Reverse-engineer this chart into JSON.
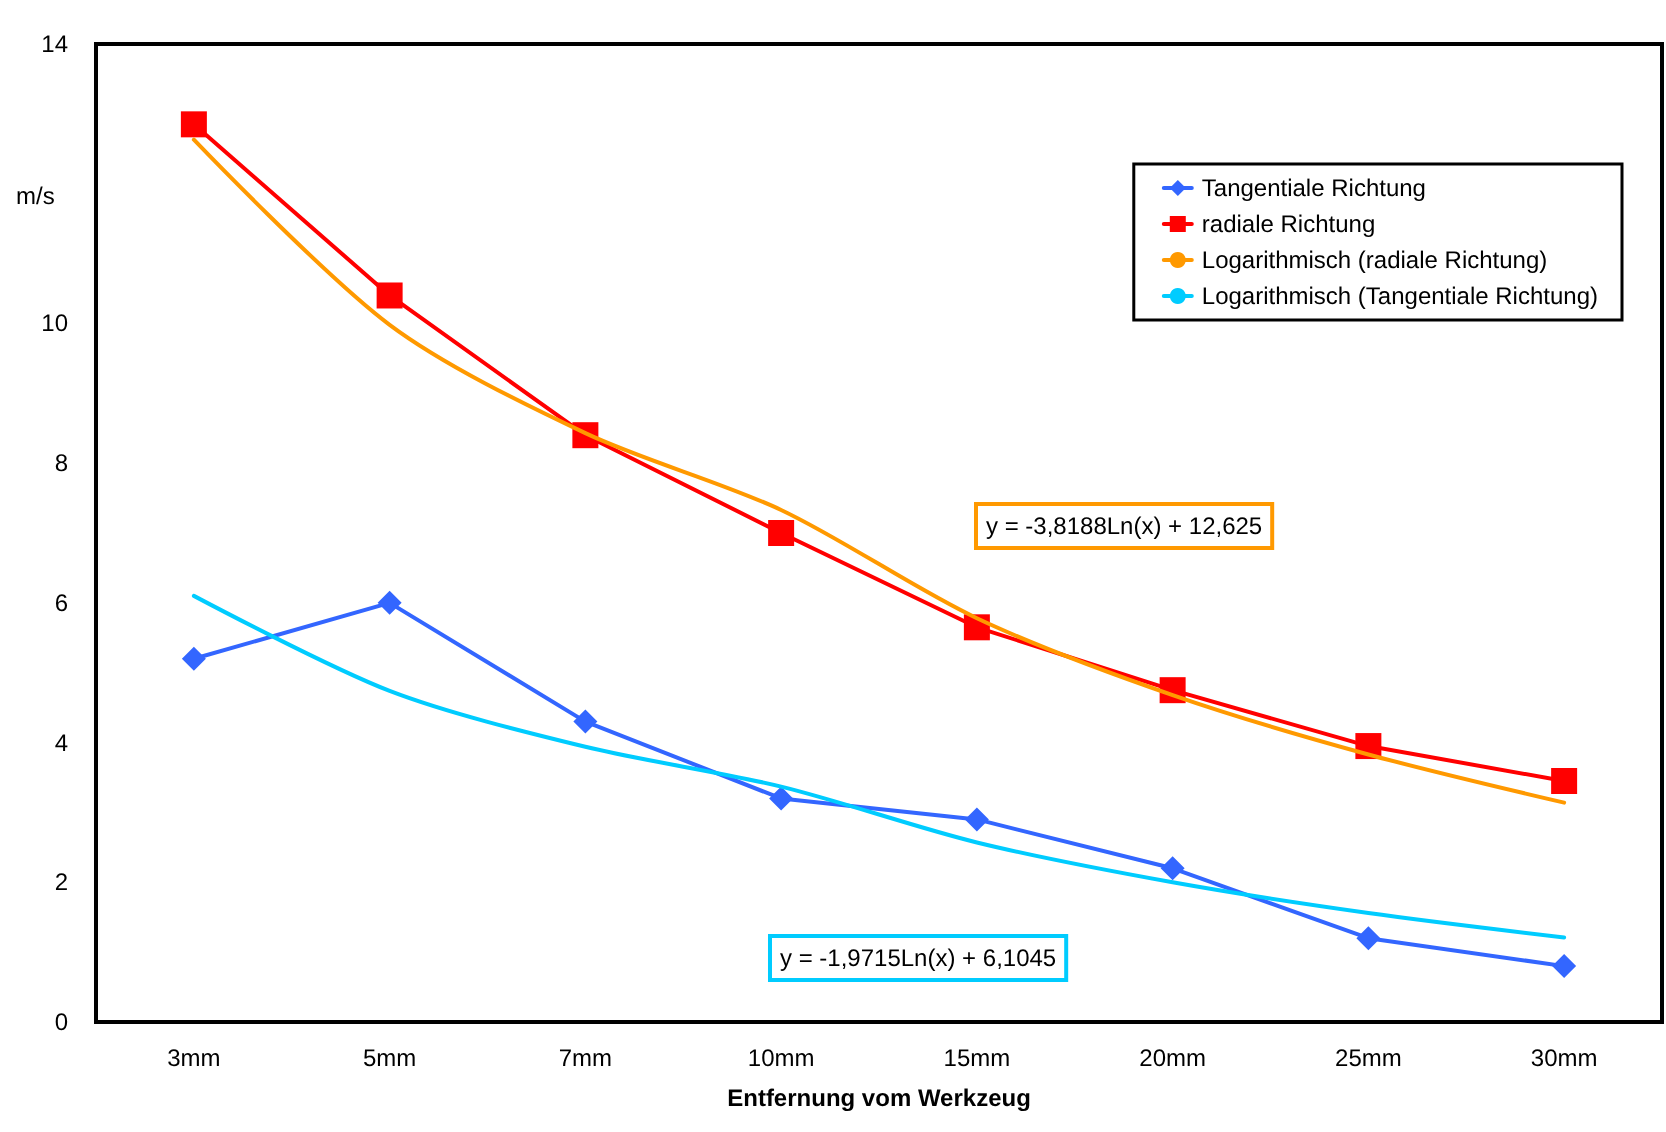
{
  "chart_data": {
    "type": "line",
    "xlabel": "Entfernung vom Werkzeug",
    "ylabel": "m/s",
    "categories": [
      "3mm",
      "5mm",
      "7mm",
      "10mm",
      "15mm",
      "20mm",
      "25mm",
      "30mm"
    ],
    "ylim": [
      0,
      14
    ],
    "yticks": [
      0,
      2,
      4,
      6,
      8,
      10,
      14
    ],
    "grid": false,
    "legend": "top right",
    "series": [
      {
        "name": "Tangentiale Richtung",
        "color": "#3366ff",
        "marker": "diamond",
        "values": [
          5.2,
          6.0,
          4.3,
          3.2,
          2.9,
          2.2,
          1.2,
          0.8
        ]
      },
      {
        "name": "radiale Richtung",
        "color": "#ff0000",
        "marker": "square",
        "values": [
          12.85,
          10.4,
          8.4,
          7.0,
          5.65,
          4.75,
          3.95,
          3.45
        ]
      },
      {
        "name": "Logarithmisch (radiale Richtung)",
        "color": "#ff9900",
        "marker": "none",
        "values": [
          12.63,
          9.98,
          8.43,
          7.33,
          5.78,
          4.68,
          3.83,
          3.14
        ]
      },
      {
        "name": "Logarithmisch (Tangentiale Richtung)",
        "color": "#00ccff",
        "marker": "none",
        "values": [
          6.1,
          4.74,
          3.94,
          3.37,
          2.57,
          2.0,
          1.56,
          1.21
        ]
      }
    ],
    "annotations": [
      "y = -3,8188Ln(x) + 12,625",
      "y = -1,9715Ln(x) + 6,1045"
    ]
  }
}
